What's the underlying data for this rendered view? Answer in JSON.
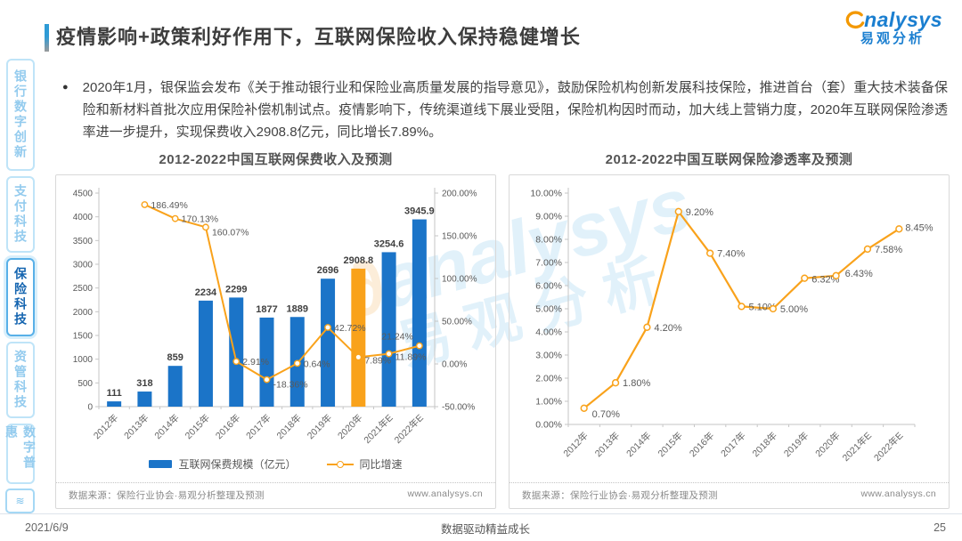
{
  "header": {
    "title": "疫情影响+政策利好作用下，互联网保险收入保持稳健增长",
    "logo_en": "nalysys",
    "logo_cn": "易观分析"
  },
  "sidebar": {
    "items": [
      {
        "label": "银行数字创新",
        "active": false
      },
      {
        "label": "支付科技",
        "active": false
      },
      {
        "label": "保险科技",
        "active": true
      },
      {
        "label": "资管科技",
        "active": false
      },
      {
        "label": "数字普惠",
        "active": false
      }
    ],
    "mini_icon": "≋"
  },
  "bullet": {
    "marker": "●",
    "text": "2020年1月，银保监会发布《关于推动银行业和保险业高质量发展的指导意见》，鼓励保险机构创新发展科技保险，推进首台（套）重大技术装备保险和新材料首批次应用保险补偿机制试点。疫情影响下，传统渠道线下展业受阻，保险机构因时而动，加大线上营销力度，2020年互联网保险渗透率进一步提升，实现保费收入2908.8亿元，同比增长7.89%。"
  },
  "watermark": {
    "text_en": "analysys",
    "text_cn": "易观分析",
    "swoosh": "∂"
  },
  "colors": {
    "bar_blue": "#1B74C8",
    "highlight_orange": "#F9A21B",
    "line_orange": "#F9A21B",
    "brand_blue": "#1B7FD0",
    "axis_gray": "#C6C6C6",
    "text_gray": "#595959"
  },
  "chart_data": [
    {
      "type": "bar",
      "subtype": "combo-bar-line",
      "title": "2012-2022中国互联网保费收入及预测",
      "categories": [
        "2012年",
        "2013年",
        "2014年",
        "2015年",
        "2016年",
        "2017年",
        "2018年",
        "2019年",
        "2020年",
        "2021年E",
        "2022年E"
      ],
      "series": [
        {
          "name": "互联网保费规模（亿元）",
          "type": "bar",
          "values": [
            111,
            318,
            859,
            2234,
            2299,
            1877,
            1889,
            2696,
            2908.8,
            3254.6,
            3945.9
          ],
          "labels": [
            "111",
            "318",
            "859",
            "2234",
            "2299",
            "1877",
            "1889",
            "2696",
            "2908.8",
            "3254.6",
            "3945.9"
          ],
          "highlight_index": 8,
          "bar_color": "#1B74C8",
          "highlight_color": "#F9A21B"
        },
        {
          "name": "同比增速",
          "type": "line",
          "values": [
            null,
            186.49,
            170.13,
            160.07,
            2.91,
            -18.36,
            0.64,
            42.72,
            7.89,
            11.89,
            21.24
          ],
          "labels": [
            null,
            "186.49%",
            "170.13%",
            "160.07%",
            "2.91%",
            "-18.36%",
            "0.64%",
            "42.72%",
            "7.89%",
            "11.89%",
            "21.24%"
          ],
          "line_color": "#F9A21B"
        }
      ],
      "left_axis": {
        "min": 0,
        "max": 4500,
        "step": 500,
        "tick_labels": [
          "0",
          "500",
          "1000",
          "1500",
          "2000",
          "2500",
          "3000",
          "3500",
          "4000",
          "4500"
        ]
      },
      "right_axis": {
        "min": -50,
        "max": 200,
        "step": 50,
        "tick_labels": [
          "-50.00%",
          "0.00%",
          "50.00%",
          "100.00%",
          "150.00%",
          "200.00%"
        ]
      },
      "grid": false,
      "legend_position": "bottom",
      "source": "数据来源：保险行业协会·易观分析整理及预测",
      "website": "www.analysys.cn"
    },
    {
      "type": "line",
      "title": "2012-2022中国互联网保险渗透率及预测",
      "categories": [
        "2012年",
        "2013年",
        "2014年",
        "2015年",
        "2016年",
        "2017年",
        "2018年",
        "2019年",
        "2020年",
        "2021年E",
        "2022年E"
      ],
      "series": [
        {
          "name": "互联网保险渗透率",
          "type": "line",
          "values": [
            0.7,
            1.8,
            4.2,
            9.2,
            7.4,
            5.1,
            5.0,
            6.32,
            6.43,
            7.58,
            8.45
          ],
          "labels": [
            "0.70%",
            "1.80%",
            "4.20%",
            "9.20%",
            "7.40%",
            "5.10%",
            "5.00%",
            "6.32%",
            "6.43%",
            "7.58%",
            "8.45%"
          ],
          "line_color": "#F9A21B"
        }
      ],
      "y_axis": {
        "min": 0,
        "max": 10,
        "step": 1,
        "tick_labels": [
          "0.00%",
          "1.00%",
          "2.00%",
          "3.00%",
          "4.00%",
          "5.00%",
          "6.00%",
          "7.00%",
          "8.00%",
          "9.00%",
          "10.00%"
        ]
      },
      "grid": false,
      "source": "数据来源：保险行业协会·易观分析整理及预测",
      "website": "www.analysys.cn"
    }
  ],
  "footer": {
    "date": "2021/6/9",
    "slogan": "数据驱动精益成长",
    "page_number": "25"
  }
}
